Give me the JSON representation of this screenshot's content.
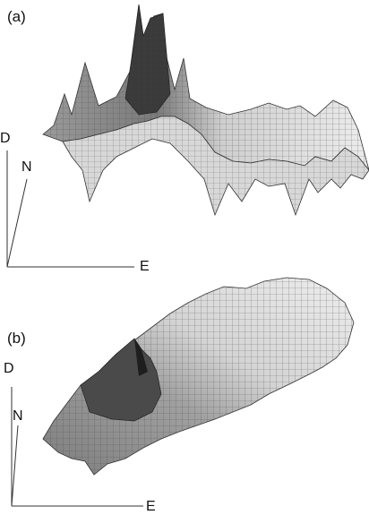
{
  "panel_a": {
    "label": "(a)",
    "axes": {
      "vertical": "D",
      "depth": "N",
      "horizontal": "E"
    }
  },
  "panel_b": {
    "label": "(b)",
    "axes": {
      "vertical": "D",
      "depth": "N",
      "horizontal": "E"
    }
  },
  "colors": {
    "surface_light": "#e6e6e6",
    "surface_mid": "#a9a9a9",
    "surface_dark": "#2f2f2f",
    "mesh_line": "#555555",
    "axis_line": "#333333"
  }
}
